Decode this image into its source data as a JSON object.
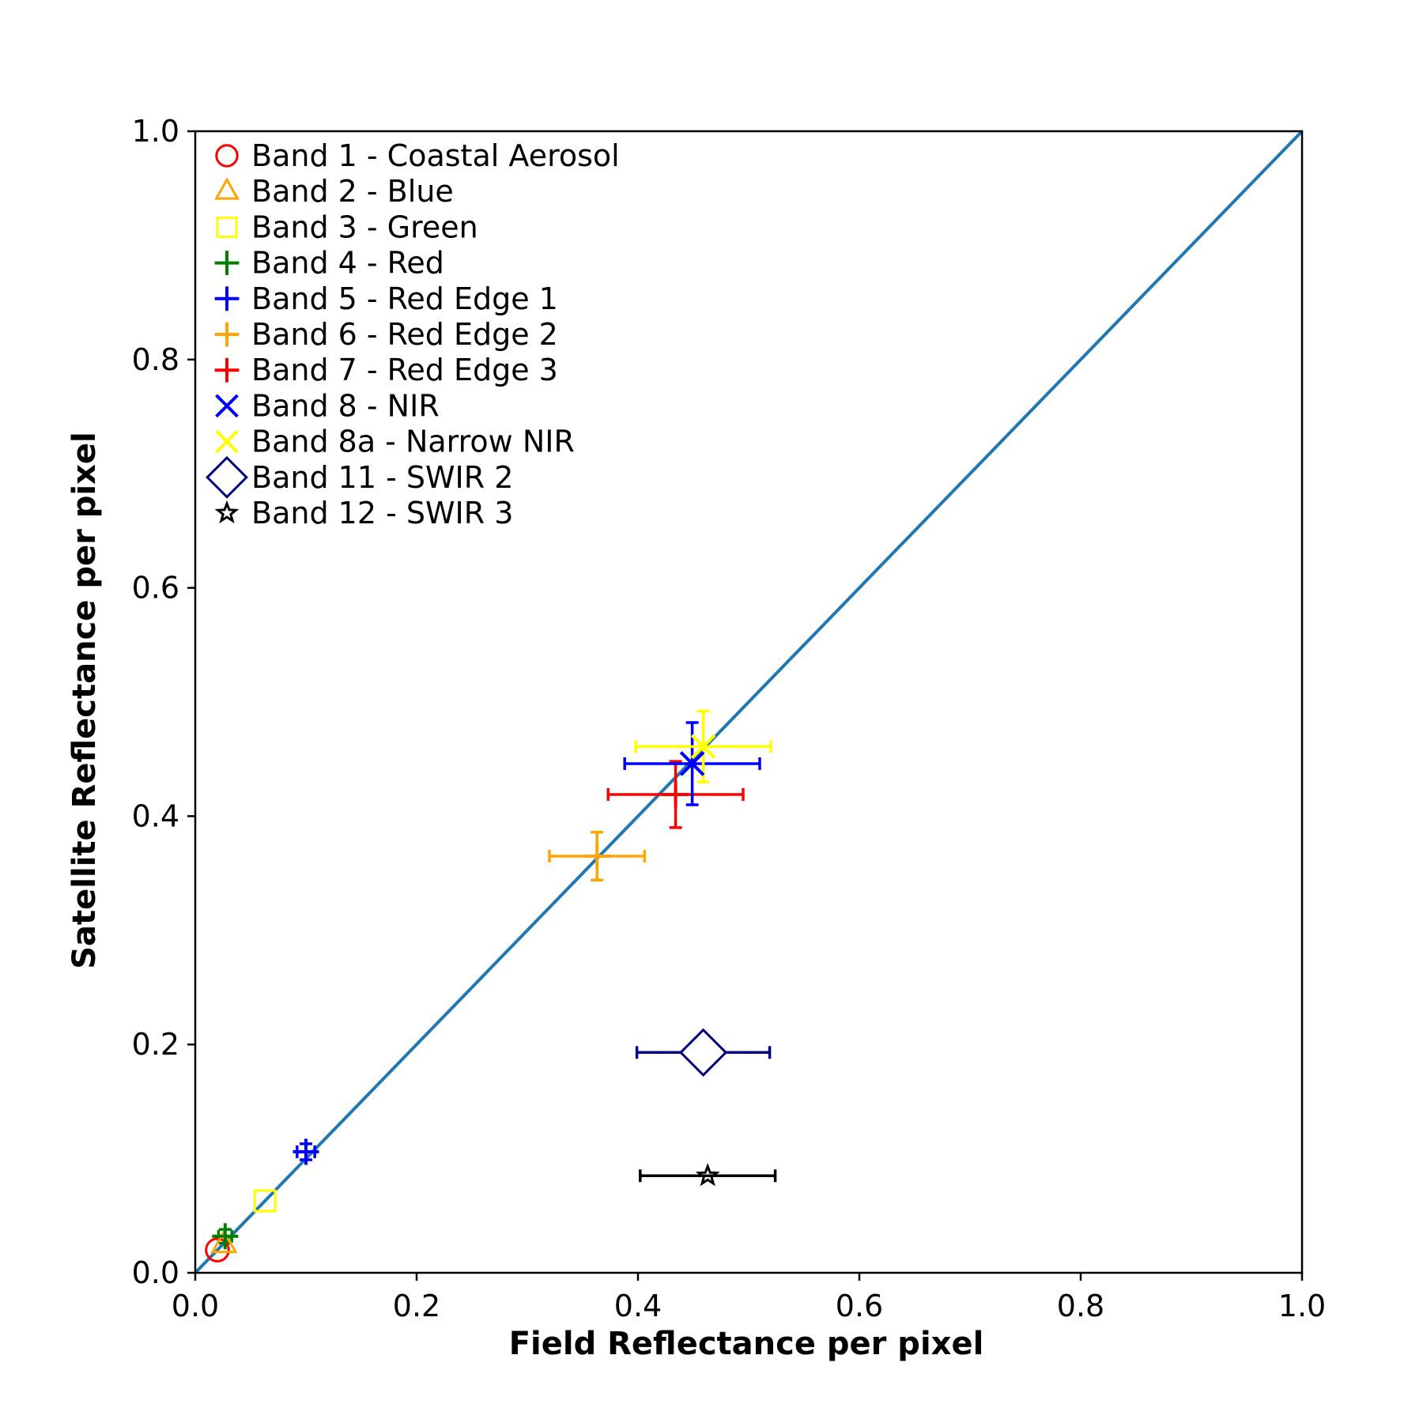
{
  "chart_data": {
    "type": "scatter",
    "title": "",
    "xlabel": "Field Reflectance per pixel",
    "ylabel": "Satellite Reflectance per pixel",
    "xlim": [
      0.0,
      1.0
    ],
    "ylim": [
      0.0,
      1.0
    ],
    "xticks": [
      "0.0",
      "0.2",
      "0.4",
      "0.6",
      "0.8",
      "1.0"
    ],
    "yticks": [
      "0.0",
      "0.2",
      "0.4",
      "0.6",
      "0.8",
      "1.0"
    ],
    "grid": false,
    "legend_position": "top-left",
    "reference_line": {
      "x": [
        0.0,
        1.0
      ],
      "y": [
        0.0,
        1.0
      ],
      "color": "#1f77b4"
    },
    "series": [
      {
        "name": "Band 1 - Coastal Aerosol",
        "marker": "circle",
        "color": "#ff0000",
        "x": 0.02,
        "y": 0.02,
        "xerr": 0.0,
        "yerr": 0.0
      },
      {
        "name": "Band 2 - Blue",
        "marker": "triangle",
        "color": "#ffa500",
        "x": 0.026,
        "y": 0.025,
        "xerr": 0.0,
        "yerr": 0.0
      },
      {
        "name": "Band 3 - Green",
        "marker": "square",
        "color": "#ffff00",
        "x": 0.063,
        "y": 0.063,
        "xerr": 0.0,
        "yerr": 0.0
      },
      {
        "name": "Band 4 - Red",
        "marker": "plus",
        "color": "#008000",
        "x": 0.027,
        "y": 0.032,
        "xerr": 0.006,
        "yerr": 0.006
      },
      {
        "name": "Band 5 - Red Edge 1",
        "marker": "plus",
        "color": "#0000ff",
        "x": 0.1,
        "y": 0.106,
        "xerr": 0.008,
        "yerr": 0.007
      },
      {
        "name": "Band 6 - Red Edge 2",
        "marker": "plus",
        "color": "#ffa500",
        "x": 0.363,
        "y": 0.365,
        "xerr": 0.043,
        "yerr": 0.021
      },
      {
        "name": "Band 7 - Red Edge 3",
        "marker": "plus",
        "color": "#ff0000",
        "x": 0.434,
        "y": 0.419,
        "xerr": 0.061,
        "yerr": 0.029
      },
      {
        "name": "Band 8 - NIR",
        "marker": "x",
        "color": "#0000ff",
        "x": 0.449,
        "y": 0.446,
        "xerr": 0.061,
        "yerr": 0.036
      },
      {
        "name": "Band 8a - Narrow NIR",
        "marker": "x",
        "color": "#ffff00",
        "x": 0.459,
        "y": 0.461,
        "xerr": 0.061,
        "yerr": 0.031
      },
      {
        "name": "Band 11 - SWIR 2",
        "marker": "diamond",
        "color": "#000080",
        "x": 0.459,
        "y": 0.193,
        "xerr": 0.06,
        "yerr": 0.0
      },
      {
        "name": "Band 12 - SWIR 3",
        "marker": "star",
        "color": "#000000",
        "x": 0.463,
        "y": 0.085,
        "xerr": 0.061,
        "yerr": 0.0
      }
    ]
  }
}
